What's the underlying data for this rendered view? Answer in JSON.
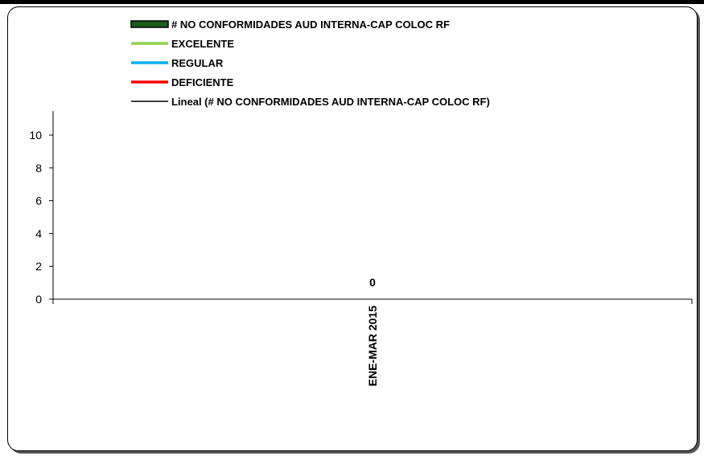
{
  "chart_data": {
    "type": "bar",
    "title": "",
    "xlabel": "",
    "ylabel": "",
    "categories": [
      "ENE-MAR 2015"
    ],
    "ylim": [
      0,
      10
    ],
    "yticks": [
      "0",
      "2",
      "4",
      "6",
      "8",
      "10"
    ],
    "series": [
      {
        "name": "# NO CONFORMIDADES AUD INTERNA-CAP COLOC RF",
        "kind": "bar",
        "color": "#1a5c1a",
        "values": [
          0
        ]
      }
    ],
    "data_labels": [
      "0"
    ],
    "legend": {
      "placement": "top",
      "entries": [
        {
          "label": "# NO CONFORMIDADES AUD INTERNA-CAP COLOC RF",
          "symbol": "box",
          "color": "#1a5c1a"
        },
        {
          "label": "EXCELENTE",
          "symbol": "line",
          "color": "#92d050"
        },
        {
          "label": "REGULAR",
          "symbol": "line",
          "color": "#00b0f0"
        },
        {
          "label": "DEFICIENTE",
          "symbol": "line",
          "color": "#ff0000"
        },
        {
          "label": "Lineal (# NO CONFORMIDADES AUD INTERNA-CAP COLOC RF)",
          "symbol": "line",
          "color": "#000000"
        }
      ]
    },
    "grid": false
  }
}
